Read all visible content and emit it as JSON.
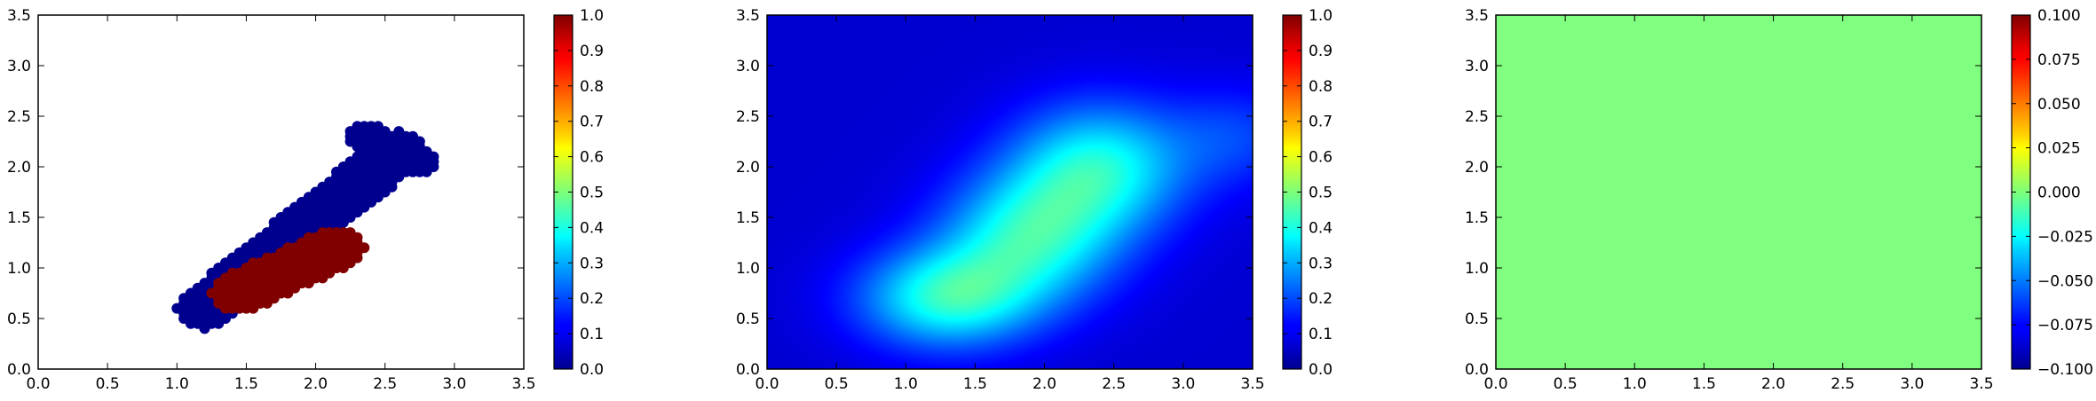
{
  "chart_data": [
    {
      "type": "scatter",
      "title": "",
      "xlabel": "",
      "ylabel": "",
      "xlim": [
        0.0,
        3.5
      ],
      "ylim": [
        0.0,
        3.5
      ],
      "xticks": [
        "0.0",
        "0.5",
        "1.0",
        "1.5",
        "2.0",
        "2.5",
        "3.0",
        "3.5"
      ],
      "yticks": [
        "0.0",
        "0.5",
        "1.0",
        "1.5",
        "2.0",
        "2.5",
        "3.0",
        "3.5"
      ],
      "grid": false,
      "colormap": "jet",
      "colorbar": {
        "range": [
          0.0,
          1.0
        ],
        "ticks": [
          "0.0",
          "0.1",
          "0.2",
          "0.3",
          "0.4",
          "0.5",
          "0.6",
          "0.7",
          "0.8",
          "0.9",
          "1.0"
        ]
      },
      "series": [
        {
          "value": 0.0,
          "color": "#00008f",
          "regions": [
            {
              "shape": "band",
              "from": [
                1.2,
                0.6
              ],
              "to": [
                2.6,
                2.15
              ],
              "halfwidth": 0.2
            },
            {
              "shape": "band",
              "from": [
                2.35,
                2.3
              ],
              "to": [
                2.75,
                2.05
              ],
              "halfwidth": 0.14
            }
          ]
        },
        {
          "value": 1.0,
          "color": "#800000",
          "regions": [
            {
              "shape": "band",
              "from": [
                1.45,
                0.75
              ],
              "to": [
                2.15,
                1.2
              ],
              "halfwidth": 0.2
            }
          ]
        }
      ]
    },
    {
      "type": "heatmap",
      "title": "",
      "xlabel": "",
      "ylabel": "",
      "xlim": [
        0.0,
        3.5
      ],
      "ylim": [
        0.0,
        3.5
      ],
      "xticks": [
        "0.0",
        "0.5",
        "1.0",
        "1.5",
        "2.0",
        "2.5",
        "3.0",
        "3.5"
      ],
      "yticks": [
        "0.0",
        "0.5",
        "1.0",
        "1.5",
        "2.0",
        "2.5",
        "3.0",
        "3.5"
      ],
      "colormap": "jet",
      "colorbar": {
        "range": [
          0.0,
          1.0
        ],
        "ticks": [
          "0.0",
          "0.1",
          "0.2",
          "0.3",
          "0.4",
          "0.5",
          "0.6",
          "0.7",
          "0.8",
          "0.9",
          "1.0"
        ]
      },
      "field": {
        "base": 0.08,
        "peaks": [
          {
            "x": 1.3,
            "y": 0.7,
            "amp": 0.32,
            "sx": 0.45,
            "sy": 0.35
          },
          {
            "x": 1.9,
            "y": 1.3,
            "amp": 0.3,
            "sx": 0.45,
            "sy": 0.45
          },
          {
            "x": 2.4,
            "y": 2.0,
            "amp": 0.3,
            "sx": 0.45,
            "sy": 0.45
          },
          {
            "x": 3.4,
            "y": 2.3,
            "amp": 0.1,
            "sx": 0.35,
            "sy": 0.35
          }
        ]
      }
    },
    {
      "type": "heatmap",
      "title": "",
      "xlabel": "",
      "ylabel": "",
      "xlim": [
        0.0,
        3.5
      ],
      "ylim": [
        0.0,
        3.5
      ],
      "xticks": [
        "0.0",
        "0.5",
        "1.0",
        "1.5",
        "2.0",
        "2.5",
        "3.0",
        "3.5"
      ],
      "yticks": [
        "0.0",
        "0.5",
        "1.0",
        "1.5",
        "2.0",
        "2.5",
        "3.0",
        "3.5"
      ],
      "colormap": "jet",
      "colorbar": {
        "range": [
          -0.1,
          0.1
        ],
        "ticks": [
          "−0.100",
          "−0.075",
          "−0.050",
          "−0.025",
          "0.000",
          "0.025",
          "0.050",
          "0.075",
          "0.100"
        ]
      },
      "field": {
        "constant": 0.0
      }
    }
  ]
}
